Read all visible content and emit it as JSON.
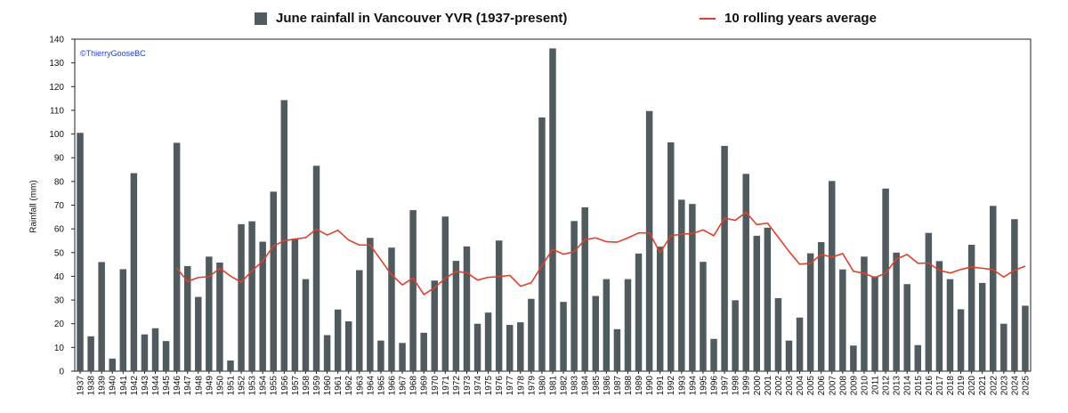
{
  "legend": {
    "bars_label": "June rainfall in Vancouver YVR (1937-present)",
    "line_label": "10 rolling years average"
  },
  "copyright": "©ThierryGooseBC",
  "colors": {
    "bar": "#4f5b5f",
    "line": "#e0402a"
  },
  "chart_data": {
    "type": "bar",
    "title": "",
    "xlabel": "",
    "ylabel": "Rainfall (mm)",
    "ylim": [
      0,
      140
    ],
    "yticks": [
      0,
      10,
      20,
      30,
      40,
      50,
      60,
      70,
      80,
      90,
      100,
      110,
      120,
      130,
      140
    ],
    "grid": false,
    "legend_position": "top",
    "categories": [
      "1937",
      "1938",
      "1939",
      "1940",
      "1941",
      "1942",
      "1943",
      "1944",
      "1945",
      "1946",
      "1947",
      "1948",
      "1949",
      "1950",
      "1951",
      "1952",
      "1953",
      "1954",
      "1955",
      "1956",
      "1957",
      "1958",
      "1959",
      "1960",
      "1961",
      "1962",
      "1963",
      "1964",
      "1965",
      "1966",
      "1967",
      "1968",
      "1969",
      "1970",
      "1971",
      "1972",
      "1973",
      "1974",
      "1975",
      "1976",
      "1977",
      "1978",
      "1979",
      "1980",
      "1981",
      "1982",
      "1983",
      "1984",
      "1985",
      "1986",
      "1987",
      "1988",
      "1989",
      "1990",
      "1991",
      "1992",
      "1993",
      "1994",
      "1995",
      "1996",
      "1997",
      "1998",
      "1999",
      "2000",
      "2001",
      "2002",
      "2003",
      "2004",
      "2005",
      "2006",
      "2007",
      "2008",
      "2009",
      "2010",
      "2011",
      "2012",
      "2013",
      "2014",
      "2015",
      "2016",
      "2017",
      "2018",
      "2019",
      "2020",
      "2021",
      "2022",
      "2023",
      "2024",
      "2025"
    ],
    "series": [
      {
        "name": "June rainfall in Vancouver YVR (1937-present)",
        "kind": "bar",
        "values": [
          100.5,
          14.7,
          46,
          5.3,
          43,
          83.5,
          15.5,
          18.1,
          12.7,
          96.3,
          44.3,
          31.3,
          48.3,
          45.8,
          4.5,
          62,
          63.2,
          54.6,
          75.7,
          114.3,
          55.9,
          38.8,
          86.6,
          15.2,
          26,
          21,
          42.6,
          56.2,
          12.9,
          52.1,
          11.9,
          67.9,
          16.2,
          38.2,
          65.2,
          46.5,
          52.6,
          20,
          24.7,
          55.1,
          19.5,
          20.6,
          30.5,
          107,
          136.1,
          29.2,
          63.3,
          69.1,
          31.7,
          38.8,
          17.7,
          38.8,
          49.6,
          109.7,
          52.5,
          96.5,
          72.3,
          70.5,
          46.1,
          13.6,
          95,
          29.9,
          83.2,
          57.1,
          60.5,
          30.8,
          12.9,
          22.6,
          49.7,
          54.4,
          80.2,
          42.9,
          10.8,
          48.3,
          40,
          77,
          50,
          36.7,
          11,
          58.3,
          46.4,
          38.8,
          26.1,
          53.3,
          37.2,
          69.7,
          20,
          64.1,
          27.6
        ]
      },
      {
        "name": "10 rolling years average",
        "kind": "line",
        "values": [
          null,
          null,
          null,
          null,
          null,
          null,
          null,
          null,
          null,
          43.5,
          37.8,
          39.5,
          39.8,
          43.4,
          40.1,
          37.5,
          42.3,
          46.4,
          52.8,
          55,
          55.7,
          56.3,
          59.9,
          57.4,
          59.4,
          55.3,
          53.2,
          53.2,
          46.9,
          40.6,
          36.4,
          39.3,
          32.3,
          35.2,
          39.2,
          42,
          41.6,
          38.4,
          39.6,
          39.8,
          40.4,
          35.8,
          37.3,
          44.5,
          51.4,
          49.3,
          50.4,
          55.5,
          56.2,
          54.6,
          54.4,
          56.2,
          58.3,
          58.3,
          50,
          57.1,
          57.8,
          58,
          59.6,
          57.1,
          64.6,
          63.6,
          67,
          61.8,
          62.4,
          56.5,
          50.5,
          45.1,
          45.5,
          49.2,
          48.1,
          49.6,
          42.1,
          41.3,
          39.4,
          41.4,
          47.3,
          49.2,
          45.5,
          45.6,
          42.5,
          41.4,
          42.9,
          43.9,
          43.4,
          42.8,
          39.7,
          42.6,
          44.3
        ]
      }
    ]
  }
}
